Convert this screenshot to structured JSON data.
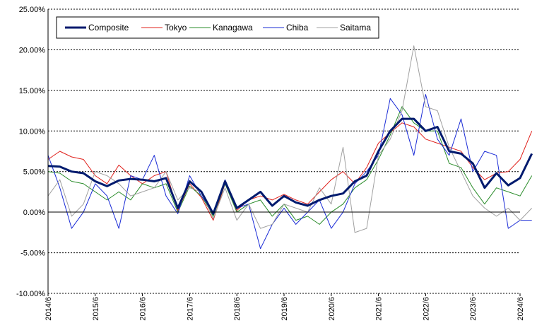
{
  "chart_data": {
    "type": "line",
    "title": "",
    "xlabel": "",
    "ylabel": "",
    "ylim": [
      -10,
      25
    ],
    "y_ticks": [
      "25.00%",
      "20.00%",
      "15.00%",
      "10.00%",
      "5.00%",
      "0.00%",
      "-5.00%",
      "-10.00%"
    ],
    "x_ticks": [
      "2014/6",
      "2015/6",
      "2016/6",
      "2017/6",
      "2018/6",
      "2019/6",
      "2020/6",
      "2021/6",
      "2022/6",
      "2023/6",
      "2024/6"
    ],
    "x_range": [
      "2014/6",
      "2024/6"
    ],
    "grid": "horizontal",
    "legend_position": "top-left",
    "series": [
      {
        "name": "Composite",
        "color": "#001a6e",
        "width": 3,
        "points": [
          [
            "2014/6",
            5.7
          ],
          [
            "2014/9",
            5.6
          ],
          [
            "2014/12",
            5.0
          ],
          [
            "2015/3",
            4.8
          ],
          [
            "2015/6",
            3.8
          ],
          [
            "2015/9",
            3.2
          ],
          [
            "2015/12",
            3.9
          ],
          [
            "2016/3",
            4.1
          ],
          [
            "2016/6",
            4.0
          ],
          [
            "2016/9",
            3.8
          ],
          [
            "2016/12",
            4.2
          ],
          [
            "2017/3",
            0.5
          ],
          [
            "2017/6",
            3.8
          ],
          [
            "2017/9",
            2.5
          ],
          [
            "2017/12",
            -0.2
          ],
          [
            "2018/3",
            3.8
          ],
          [
            "2018/6",
            0.5
          ],
          [
            "2018/9",
            1.5
          ],
          [
            "2018/12",
            2.5
          ],
          [
            "2019/3",
            0.8
          ],
          [
            "2019/6",
            2.0
          ],
          [
            "2019/9",
            1.2
          ],
          [
            "2019/12",
            0.8
          ],
          [
            "2020/3",
            1.5
          ],
          [
            "2020/6",
            2.0
          ],
          [
            "2020/9",
            2.3
          ],
          [
            "2020/12",
            3.8
          ],
          [
            "2021/3",
            4.5
          ],
          [
            "2021/6",
            7.5
          ],
          [
            "2021/9",
            10.0
          ],
          [
            "2021/12",
            11.5
          ],
          [
            "2022/3",
            11.5
          ],
          [
            "2022/6",
            10.0
          ],
          [
            "2022/9",
            10.5
          ],
          [
            "2022/12",
            7.5
          ],
          [
            "2023/3",
            7.2
          ],
          [
            "2023/6",
            6.0
          ],
          [
            "2023/9",
            3.0
          ],
          [
            "2023/12",
            4.8
          ],
          [
            "2024/3",
            3.3
          ],
          [
            "2024/6",
            4.2
          ],
          [
            "2024/9",
            7.2
          ]
        ]
      },
      {
        "name": "Tokyo",
        "color": "#e0201b",
        "width": 1,
        "points": [
          [
            "2014/6",
            6.5
          ],
          [
            "2014/9",
            7.5
          ],
          [
            "2014/12",
            6.8
          ],
          [
            "2015/3",
            6.5
          ],
          [
            "2015/6",
            4.5
          ],
          [
            "2015/9",
            3.5
          ],
          [
            "2015/12",
            5.8
          ],
          [
            "2016/3",
            4.5
          ],
          [
            "2016/6",
            3.5
          ],
          [
            "2016/9",
            4.5
          ],
          [
            "2016/12",
            5.0
          ],
          [
            "2017/3",
            0.2
          ],
          [
            "2017/6",
            3.5
          ],
          [
            "2017/9",
            1.8
          ],
          [
            "2017/12",
            -1.0
          ],
          [
            "2018/3",
            3.5
          ],
          [
            "2018/6",
            0.2
          ],
          [
            "2018/9",
            1.5
          ],
          [
            "2018/12",
            2.0
          ],
          [
            "2019/3",
            1.5
          ],
          [
            "2019/6",
            2.2
          ],
          [
            "2019/9",
            1.5
          ],
          [
            "2019/12",
            1.0
          ],
          [
            "2020/3",
            2.5
          ],
          [
            "2020/6",
            4.0
          ],
          [
            "2020/9",
            5.0
          ],
          [
            "2020/12",
            3.5
          ],
          [
            "2021/3",
            5.5
          ],
          [
            "2021/6",
            8.5
          ],
          [
            "2021/9",
            9.8
          ],
          [
            "2021/12",
            11.0
          ],
          [
            "2022/3",
            10.5
          ],
          [
            "2022/6",
            9.0
          ],
          [
            "2022/9",
            8.5
          ],
          [
            "2022/12",
            8.0
          ],
          [
            "2023/3",
            7.5
          ],
          [
            "2023/6",
            5.5
          ],
          [
            "2023/9",
            4.0
          ],
          [
            "2023/12",
            4.8
          ],
          [
            "2024/3",
            5.0
          ],
          [
            "2024/6",
            6.5
          ],
          [
            "2024/9",
            10.0
          ]
        ]
      },
      {
        "name": "Kanagawa",
        "color": "#2a8c2a",
        "width": 1,
        "points": [
          [
            "2014/6",
            5.0
          ],
          [
            "2014/9",
            4.8
          ],
          [
            "2014/12",
            3.8
          ],
          [
            "2015/3",
            3.5
          ],
          [
            "2015/6",
            2.5
          ],
          [
            "2015/9",
            1.5
          ],
          [
            "2015/12",
            2.5
          ],
          [
            "2016/3",
            1.5
          ],
          [
            "2016/6",
            3.5
          ],
          [
            "2016/9",
            3.0
          ],
          [
            "2016/12",
            3.5
          ],
          [
            "2017/3",
            0.0
          ],
          [
            "2017/6",
            3.2
          ],
          [
            "2017/9",
            2.0
          ],
          [
            "2017/12",
            -0.5
          ],
          [
            "2018/3",
            3.5
          ],
          [
            "2018/6",
            0.0
          ],
          [
            "2018/9",
            1.0
          ],
          [
            "2018/12",
            1.5
          ],
          [
            "2019/3",
            -0.5
          ],
          [
            "2019/6",
            1.0
          ],
          [
            "2019/9",
            -1.0
          ],
          [
            "2019/12",
            -0.5
          ],
          [
            "2020/3",
            -1.5
          ],
          [
            "2020/6",
            0.0
          ],
          [
            "2020/9",
            1.0
          ],
          [
            "2020/12",
            3.0
          ],
          [
            "2021/3",
            4.0
          ],
          [
            "2021/6",
            6.5
          ],
          [
            "2021/9",
            9.5
          ],
          [
            "2021/12",
            13.0
          ],
          [
            "2022/3",
            11.0
          ],
          [
            "2022/6",
            10.0
          ],
          [
            "2022/9",
            10.0
          ],
          [
            "2022/12",
            6.0
          ],
          [
            "2023/3",
            5.5
          ],
          [
            "2023/6",
            3.0
          ],
          [
            "2023/9",
            1.0
          ],
          [
            "2023/12",
            3.0
          ],
          [
            "2024/3",
            2.5
          ],
          [
            "2024/6",
            2.0
          ],
          [
            "2024/9",
            4.5
          ]
        ]
      },
      {
        "name": "Chiba",
        "color": "#1a2bd6",
        "width": 1,
        "points": [
          [
            "2014/6",
            7.0
          ],
          [
            "2014/9",
            3.0
          ],
          [
            "2014/12",
            -2.0
          ],
          [
            "2015/3",
            0.0
          ],
          [
            "2015/6",
            3.5
          ],
          [
            "2015/9",
            2.0
          ],
          [
            "2015/12",
            -2.0
          ],
          [
            "2016/3",
            4.5
          ],
          [
            "2016/6",
            4.0
          ],
          [
            "2016/9",
            7.0
          ],
          [
            "2016/12",
            2.0
          ],
          [
            "2017/3",
            -0.2
          ],
          [
            "2017/6",
            4.5
          ],
          [
            "2017/9",
            2.0
          ],
          [
            "2017/12",
            0.0
          ],
          [
            "2018/3",
            4.0
          ],
          [
            "2018/6",
            0.5
          ],
          [
            "2018/9",
            1.0
          ],
          [
            "2018/12",
            -4.5
          ],
          [
            "2019/3",
            -1.5
          ],
          [
            "2019/6",
            0.5
          ],
          [
            "2019/9",
            -1.5
          ],
          [
            "2019/12",
            0.0
          ],
          [
            "2020/3",
            1.5
          ],
          [
            "2020/6",
            -2.0
          ],
          [
            "2020/9",
            0.0
          ],
          [
            "2020/12",
            3.5
          ],
          [
            "2021/3",
            5.0
          ],
          [
            "2021/6",
            7.0
          ],
          [
            "2021/9",
            14.0
          ],
          [
            "2021/12",
            12.0
          ],
          [
            "2022/3",
            7.0
          ],
          [
            "2022/6",
            14.5
          ],
          [
            "2022/9",
            9.0
          ],
          [
            "2022/12",
            7.0
          ],
          [
            "2023/3",
            11.5
          ],
          [
            "2023/6",
            5.0
          ],
          [
            "2023/9",
            7.5
          ],
          [
            "2023/12",
            7.0
          ],
          [
            "2024/3",
            -2.0
          ],
          [
            "2024/6",
            -1.0
          ],
          [
            "2024/9",
            -1.0
          ]
        ]
      },
      {
        "name": "Saitama",
        "color": "#a0a0a0",
        "width": 1,
        "points": [
          [
            "2014/6",
            2.0
          ],
          [
            "2014/9",
            4.0
          ],
          [
            "2014/12",
            -0.5
          ],
          [
            "2015/3",
            1.0
          ],
          [
            "2015/6",
            5.0
          ],
          [
            "2015/9",
            4.5
          ],
          [
            "2015/12",
            3.5
          ],
          [
            "2016/3",
            2.0
          ],
          [
            "2016/6",
            2.5
          ],
          [
            "2016/9",
            3.0
          ],
          [
            "2016/12",
            5.0
          ],
          [
            "2017/3",
            1.5
          ],
          [
            "2017/6",
            3.0
          ],
          [
            "2017/9",
            2.5
          ],
          [
            "2017/12",
            -0.8
          ],
          [
            "2018/3",
            3.0
          ],
          [
            "2018/6",
            -1.0
          ],
          [
            "2018/9",
            1.0
          ],
          [
            "2018/12",
            -2.0
          ],
          [
            "2019/3",
            -1.5
          ],
          [
            "2019/6",
            1.0
          ],
          [
            "2019/9",
            0.5
          ],
          [
            "2019/12",
            0.0
          ],
          [
            "2020/3",
            3.0
          ],
          [
            "2020/6",
            1.0
          ],
          [
            "2020/9",
            8.0
          ],
          [
            "2020/12",
            -2.5
          ],
          [
            "2021/3",
            -2.0
          ],
          [
            "2021/6",
            7.0
          ],
          [
            "2021/9",
            9.0
          ],
          [
            "2021/12",
            12.5
          ],
          [
            "2022/3",
            20.5
          ],
          [
            "2022/6",
            13.0
          ],
          [
            "2022/9",
            12.5
          ],
          [
            "2022/12",
            8.0
          ],
          [
            "2023/3",
            5.0
          ],
          [
            "2023/6",
            2.0
          ],
          [
            "2023/9",
            0.5
          ],
          [
            "2023/12",
            -0.5
          ],
          [
            "2024/3",
            0.5
          ],
          [
            "2024/6",
            -1.0
          ],
          [
            "2024/9",
            0.5
          ]
        ]
      }
    ]
  }
}
